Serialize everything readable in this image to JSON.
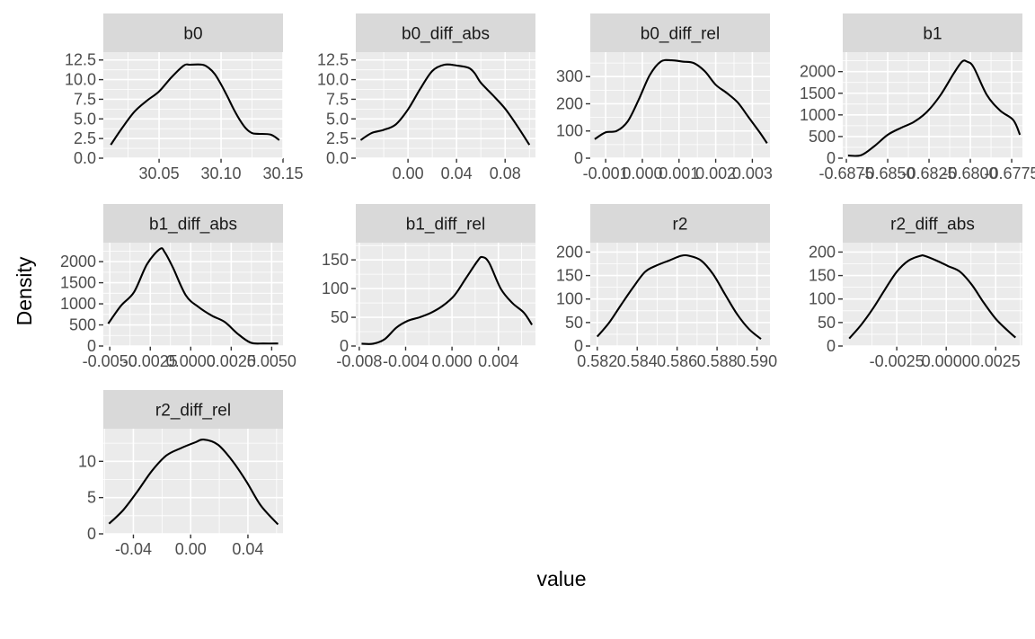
{
  "chart_data": {
    "type": "line",
    "facet_grid": "4 columns, 3 rows (facet_wrap)",
    "xlabel": "value",
    "ylabel": "Density",
    "grid": true,
    "legend": "none",
    "line_color": "#000000",
    "panel_background": "#ebebeb",
    "strip_background": "#d9d9d9",
    "panels": [
      {
        "name": "b0",
        "xlim": [
          30.005,
          30.15
        ],
        "ylim": [
          0,
          13.5
        ],
        "x_ticks": [
          30.05,
          30.1,
          30.15
        ],
        "x_tick_labels": [
          "30.05",
          "30.10",
          "30.15"
        ],
        "y_ticks": [
          0,
          2.5,
          5,
          7.5,
          10,
          12.5
        ],
        "y_tick_labels": [
          "0.0",
          "2.5",
          "5.0",
          "7.5",
          "10.0",
          "12.5"
        ],
        "x": [
          30.011,
          30.02,
          30.03,
          30.04,
          30.05,
          30.06,
          30.07,
          30.075,
          30.085,
          30.09,
          30.095,
          30.1,
          30.105,
          30.11,
          30.115,
          30.12,
          30.125,
          30.13,
          30.14,
          30.147
        ],
        "y": [
          1.7,
          3.8,
          5.9,
          7.3,
          8.5,
          10.3,
          11.8,
          11.9,
          11.9,
          11.5,
          10.7,
          9.4,
          7.9,
          6.3,
          4.9,
          3.8,
          3.2,
          3.1,
          3.0,
          2.3
        ]
      },
      {
        "name": "b0_diff_abs",
        "xlim": [
          -0.043,
          0.105
        ],
        "ylim": [
          0,
          13.5
        ],
        "x_ticks": [
          0.0,
          0.04,
          0.08
        ],
        "x_tick_labels": [
          "0.00",
          "0.04",
          "0.08"
        ],
        "y_ticks": [
          0,
          2.5,
          5,
          7.5,
          10,
          12.5
        ],
        "y_tick_labels": [
          "0.0",
          "2.5",
          "5.0",
          "7.5",
          "10.0",
          "12.5"
        ],
        "x": [
          -0.039,
          -0.03,
          -0.02,
          -0.01,
          0.0,
          0.01,
          0.02,
          0.03,
          0.04,
          0.05,
          0.055,
          0.06,
          0.07,
          0.08,
          0.09,
          0.1
        ],
        "y": [
          2.3,
          3.2,
          3.6,
          4.3,
          6.2,
          8.8,
          11.1,
          11.9,
          11.8,
          11.5,
          10.8,
          9.6,
          8.0,
          6.3,
          4.1,
          1.7
        ]
      },
      {
        "name": "b0_diff_rel",
        "xlim": [
          -0.00142,
          0.00348
        ],
        "ylim": [
          0,
          390
        ],
        "x_ticks": [
          -0.001,
          0.0,
          0.001,
          0.002,
          0.003
        ],
        "x_tick_labels": [
          "-0.001",
          "0.000",
          "0.001",
          "0.002",
          "0.003"
        ],
        "y_ticks": [
          0,
          100,
          200,
          300
        ],
        "y_tick_labels": [
          "0",
          "100",
          "200",
          "300"
        ],
        "x": [
          -0.0013,
          -0.001,
          -0.0007,
          -0.0004,
          -0.0001,
          0.0002,
          0.0005,
          0.0008,
          0.0011,
          0.0014,
          0.0017,
          0.002,
          0.0023,
          0.0026,
          0.0029,
          0.0032,
          0.0034
        ],
        "y": [
          70,
          95,
          100,
          135,
          215,
          305,
          355,
          360,
          355,
          350,
          320,
          270,
          240,
          205,
          150,
          95,
          55
        ]
      },
      {
        "name": "b1",
        "xlim": [
          -0.68772,
          -0.67685
        ],
        "ylim": [
          0,
          2450
        ],
        "x_ticks": [
          -0.6875,
          -0.685,
          -0.6825,
          -0.68,
          -0.6775
        ],
        "x_tick_labels": [
          "-0.6875",
          "-0.6850",
          "-0.6825",
          "-0.6800",
          "-0.6775"
        ],
        "y_ticks": [
          0,
          500,
          1000,
          1500,
          2000
        ],
        "y_tick_labels": [
          "0",
          "500",
          "1000",
          "1500",
          "2000"
        ],
        "x": [
          -0.6874,
          -0.6866,
          -0.6858,
          -0.685,
          -0.6842,
          -0.6834,
          -0.6826,
          -0.6818,
          -0.681,
          -0.6805,
          -0.6802,
          -0.6798,
          -0.679,
          -0.6782,
          -0.6774,
          -0.677
        ],
        "y": [
          60,
          70,
          280,
          540,
          700,
          840,
          1080,
          1460,
          1960,
          2230,
          2230,
          2100,
          1460,
          1100,
          880,
          540
        ]
      },
      {
        "name": "b1_diff_abs",
        "xlim": [
          -0.0054,
          0.0057
        ],
        "ylim": [
          0,
          2450
        ],
        "x_ticks": [
          -0.005,
          -0.0025,
          0.0,
          0.0025,
          0.005
        ],
        "x_tick_labels": [
          "-0.0050",
          "-0.0025",
          "0.0000",
          "0.0025",
          "0.0050"
        ],
        "y_ticks": [
          0,
          500,
          1000,
          1500,
          2000
        ],
        "y_tick_labels": [
          "0",
          "500",
          "1000",
          "1500",
          "2000"
        ],
        "x": [
          -0.0051,
          -0.0043,
          -0.0035,
          -0.0027,
          -0.0019,
          -0.0016,
          -0.0011,
          -0.0003,
          0.0005,
          0.0013,
          0.0021,
          0.0029,
          0.0037,
          0.0045,
          0.0054
        ],
        "y": [
          530,
          960,
          1280,
          1940,
          2300,
          2220,
          1860,
          1200,
          920,
          720,
          570,
          290,
          80,
          60,
          60
        ]
      },
      {
        "name": "b1_diff_rel",
        "xlim": [
          -0.0083,
          0.0072
        ],
        "ylim": [
          0,
          180
        ],
        "x_ticks": [
          -0.008,
          -0.004,
          0.0,
          0.004
        ],
        "x_tick_labels": [
          "-0.008",
          "-0.004",
          "0.000",
          "0.004"
        ],
        "y_ticks": [
          0,
          50,
          100,
          150
        ],
        "y_tick_labels": [
          "0",
          "50",
          "100",
          "150"
        ],
        "x": [
          -0.0078,
          -0.0068,
          -0.0058,
          -0.0048,
          -0.0038,
          -0.0028,
          -0.0018,
          -0.0008,
          0.0002,
          0.0012,
          0.0022,
          0.0026,
          0.0032,
          0.0042,
          0.0052,
          0.0062,
          0.0069
        ],
        "y": [
          4,
          4,
          12,
          32,
          44,
          50,
          58,
          70,
          88,
          118,
          148,
          155,
          145,
          100,
          75,
          58,
          37
        ]
      },
      {
        "name": "r2",
        "xlim": [
          0.58165,
          0.59065
        ],
        "ylim": [
          0,
          220
        ],
        "x_ticks": [
          0.582,
          0.584,
          0.586,
          0.588,
          0.59
        ],
        "x_tick_labels": [
          "0.582",
          "0.584",
          "0.586",
          "0.588",
          "0.590"
        ],
        "y_ticks": [
          0,
          50,
          100,
          150,
          200
        ],
        "y_tick_labels": [
          "0",
          "50",
          "100",
          "150",
          "200"
        ],
        "x": [
          0.582,
          0.5826,
          0.5832,
          0.5838,
          0.5844,
          0.585,
          0.5856,
          0.5862,
          0.5866,
          0.5872,
          0.5878,
          0.5884,
          0.589,
          0.5896,
          0.5902
        ],
        "y": [
          20,
          50,
          88,
          125,
          158,
          172,
          182,
          192,
          192,
          182,
          153,
          110,
          68,
          36,
          15
        ]
      },
      {
        "name": "r2_diff_abs",
        "xlim": [
          -0.00523,
          0.00385
        ],
        "ylim": [
          0,
          220
        ],
        "x_ticks": [
          -0.0025,
          0.0,
          0.0025
        ],
        "x_tick_labels": [
          "-0.0025",
          "0.0000",
          "0.0025"
        ],
        "y_ticks": [
          0,
          50,
          100,
          150,
          200
        ],
        "y_tick_labels": [
          "0",
          "50",
          "100",
          "150",
          "200"
        ],
        "x": [
          -0.0049,
          -0.0043,
          -0.0037,
          -0.0031,
          -0.0025,
          -0.0019,
          -0.0013,
          -0.0011,
          -0.0005,
          0.0001,
          0.0007,
          0.0013,
          0.0019,
          0.0025,
          0.0031,
          0.0035
        ],
        "y": [
          16,
          45,
          80,
          120,
          158,
          182,
          192,
          192,
          182,
          170,
          158,
          130,
          92,
          58,
          33,
          18
        ]
      },
      {
        "name": "r2_diff_rel",
        "xlim": [
          -0.061,
          0.0645
        ],
        "ylim": [
          0,
          14.5
        ],
        "x_ticks": [
          -0.04,
          0.0,
          0.04
        ],
        "x_tick_labels": [
          "-0.04",
          "0.00",
          "0.04"
        ],
        "y_ticks": [
          0,
          5,
          10
        ],
        "y_tick_labels": [
          "0",
          "5",
          "10"
        ],
        "x": [
          -0.057,
          -0.047,
          -0.037,
          -0.027,
          -0.017,
          -0.007,
          0.003,
          0.009,
          0.019,
          0.029,
          0.039,
          0.049,
          0.061
        ],
        "y": [
          1.4,
          3.3,
          5.9,
          8.7,
          10.8,
          11.8,
          12.6,
          13.0,
          12.3,
          10.1,
          7.2,
          3.9,
          1.3
        ]
      }
    ]
  }
}
